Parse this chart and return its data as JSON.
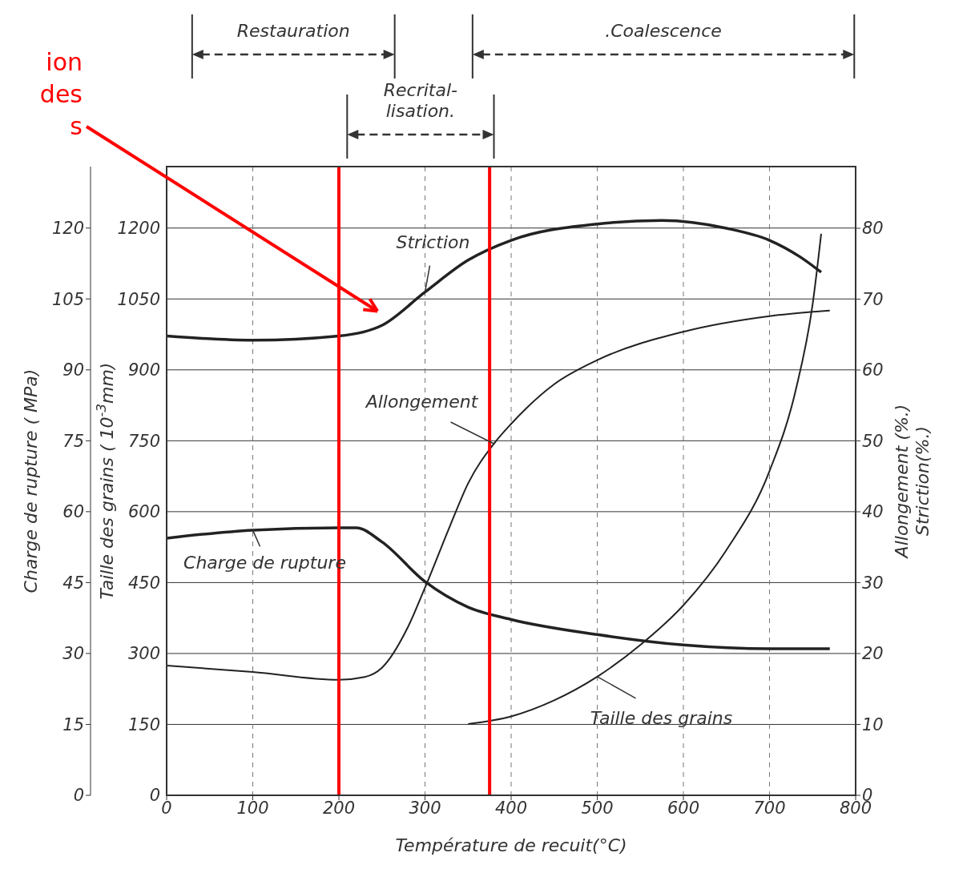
{
  "chart_data": {
    "type": "line",
    "xlabel": "Température de recuit(°C)",
    "ylabel": "Charge de rupture ( MPa)",
    "y3label": "Taille des grains ( 10$^{-3}$mm)",
    "y2label": "Allongement (%.)\nStriction(%.)",
    "xlim": [
      0,
      800
    ],
    "xticks": [
      0,
      100,
      200,
      300,
      400,
      500,
      600,
      700,
      800
    ],
    "ylim": [
      0,
      1330
    ],
    "yticks": [
      0,
      150,
      300,
      450,
      600,
      750,
      900,
      1050,
      1200
    ],
    "y3lim": [
      0,
      133
    ],
    "y3ticks": [
      0,
      15,
      30,
      45,
      60,
      75,
      90,
      105,
      120
    ],
    "y2lim": [
      0,
      88.7
    ],
    "y2ticks": [
      0,
      10,
      20,
      30,
      40,
      50,
      60,
      70,
      80
    ],
    "grid": true,
    "marker": "none",
    "line_style": "solid",
    "series": [
      {
        "name": "Striction",
        "color": "#222222",
        "axis": "y2",
        "x": [
          0,
          100,
          200,
          250,
          300,
          350,
          400,
          500,
          575,
          650,
          700,
          735,
          760
        ],
        "values": [
          64.8,
          64.2,
          64.8,
          66.3,
          71,
          75.5,
          78.3,
          80.6,
          81.1,
          80,
          78.3,
          76,
          73.8
        ]
      },
      {
        "name": "Allongement",
        "color": "#222222",
        "axis": "y2",
        "x": [
          0,
          100,
          200,
          230,
          250,
          280,
          300,
          330,
          350,
          380,
          400,
          450,
          500,
          600,
          700,
          770
        ],
        "values": [
          18.3,
          17.4,
          16.3,
          16.7,
          18,
          23.7,
          29.3,
          38.3,
          44,
          49.6,
          52.4,
          58,
          61.4,
          65.4,
          67.6,
          68.4
        ]
      },
      {
        "name": "Charge de rupture",
        "color": "#222222",
        "axis": "y",
        "x": [
          0,
          100,
          200,
          220,
          250,
          300,
          350,
          400,
          500,
          600,
          700,
          770
        ],
        "values": [
          544,
          561,
          566,
          566,
          536,
          452,
          398,
          372,
          340,
          318,
          310,
          310
        ]
      },
      {
        "name": "Taille des grains",
        "color": "#222222",
        "axis": "y3",
        "x": [
          350,
          400,
          450,
          500,
          550,
          600,
          650,
          700,
          730,
          750,
          760
        ],
        "values": [
          15.1,
          16.7,
          20.1,
          25.1,
          31.8,
          40.2,
          51.9,
          68.6,
          85.4,
          103.8,
          118.8
        ]
      }
    ],
    "ref_lines": [
      {
        "axis": "x",
        "value": 200,
        "color": "#ff0000"
      },
      {
        "axis": "x",
        "value": 375,
        "color": "#ff0000"
      }
    ],
    "annotations": [
      "ion\ndes\ns",
      "Restauration",
      "Recrital-\nlisation.",
      ".Coalescence"
    ]
  }
}
